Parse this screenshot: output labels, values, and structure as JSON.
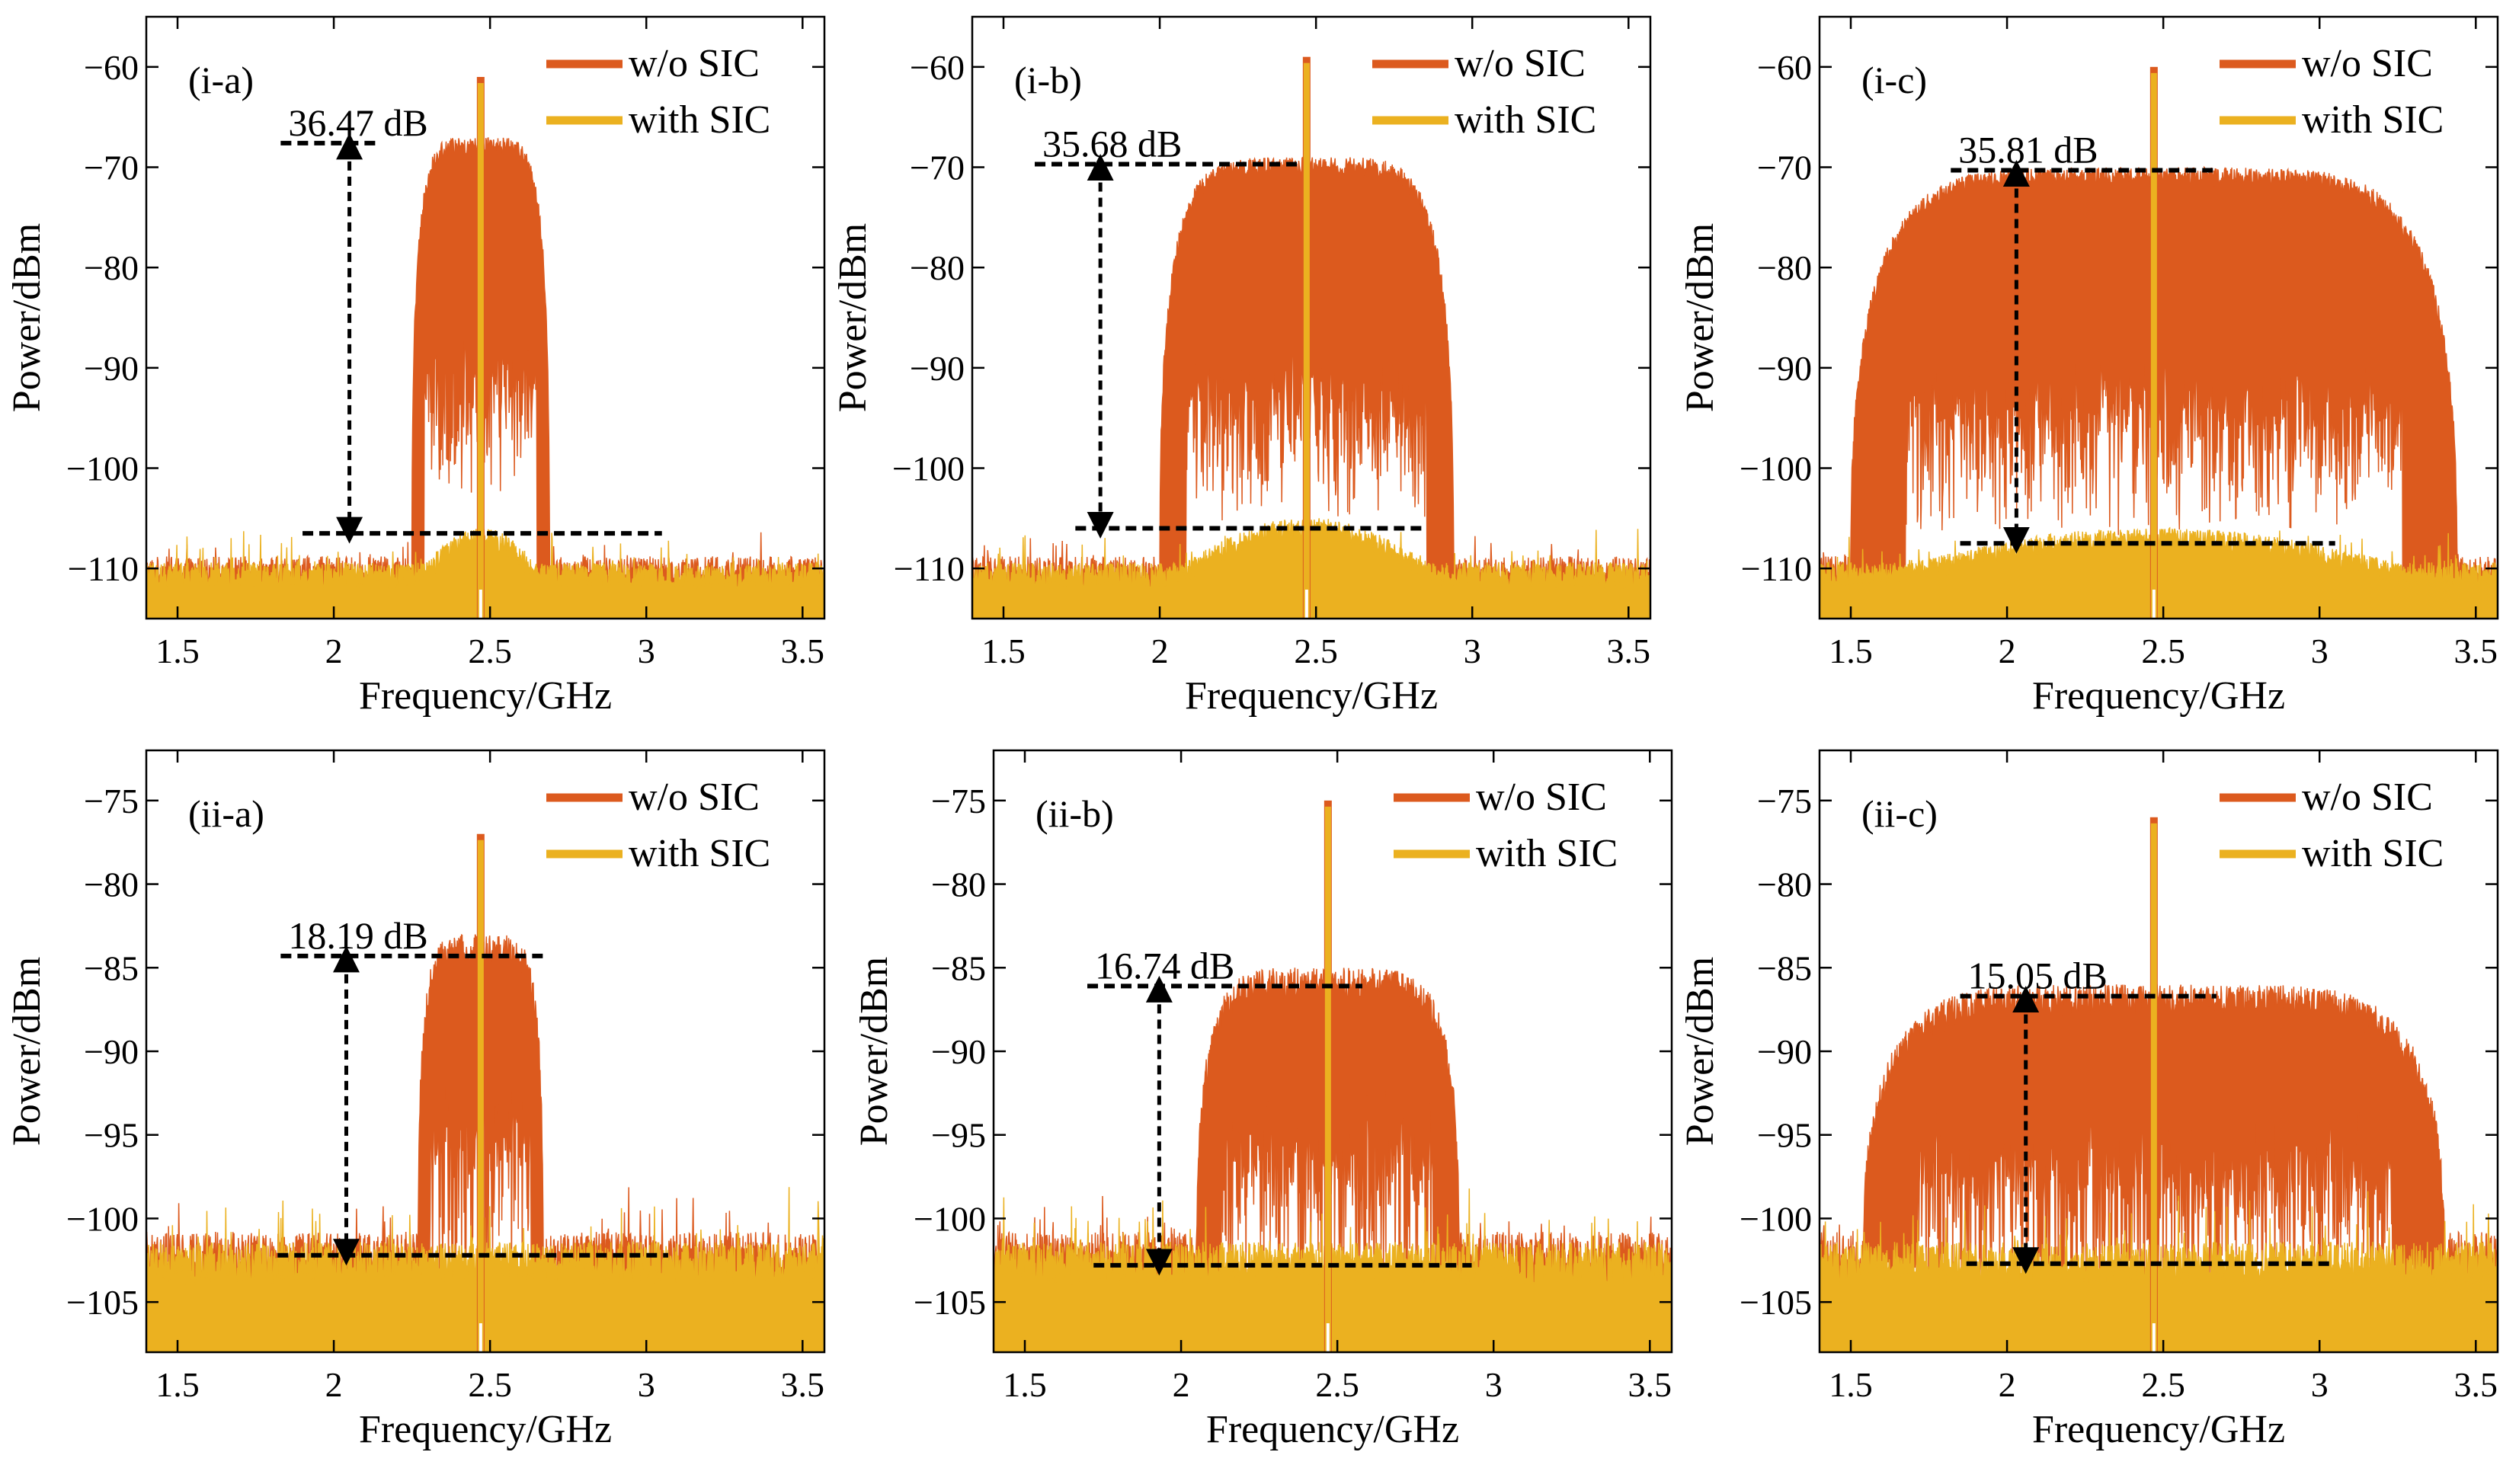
{
  "chart_data": [
    {
      "id": "i-a",
      "type": "line",
      "tag": "(i-a)",
      "xlabel": "Frequency/GHz",
      "ylabel": "Power/dBm",
      "xlim": [
        1.4,
        3.57
      ],
      "ylim": [
        -115,
        -55
      ],
      "xticks": [
        1.5,
        2,
        2.5,
        3,
        3.5
      ],
      "xtick_labels": [
        "1.5",
        "2",
        "2.5",
        "3",
        "3.5"
      ],
      "yticks": [
        -60,
        -70,
        -80,
        -90,
        -100,
        -110
      ],
      "ytick_labels": [
        "−60",
        "−70",
        "−80",
        "−90",
        "−100",
        "−110"
      ],
      "legend": [
        "w/o SIC",
        "with SIC"
      ],
      "series": [
        {
          "name": "w/o SIC",
          "color": "#DC5A1E",
          "center": 2.47,
          "halfwidth": 0.22,
          "peak_level": -68,
          "carrier": -61,
          "floor": -112,
          "notch_depth": -93
        },
        {
          "name": "with SIC",
          "color": "#EBB120",
          "center": 2.47,
          "halfwidth": 0.22,
          "hump_level": -107,
          "carrier": -61,
          "floor": -112
        }
      ],
      "annotation": {
        "text": "36.47 dB",
        "top_y": -67.6,
        "bottom_y": -106.5,
        "arrow_x": 2.05,
        "top_x_range": [
          1.83,
          2.15
        ],
        "bottom_x_range": [
          1.9,
          3.05
        ]
      }
    },
    {
      "id": "i-b",
      "type": "line",
      "tag": "(i-b)",
      "xlabel": "Frequency/GHz",
      "ylabel": "Power/dBm",
      "xlim": [
        1.4,
        3.57
      ],
      "ylim": [
        -115,
        -55
      ],
      "xticks": [
        1.5,
        2,
        2.5,
        3,
        3.5
      ],
      "xtick_labels": [
        "1.5",
        "2",
        "2.5",
        "3",
        "3.5"
      ],
      "yticks": [
        -60,
        -70,
        -80,
        -90,
        -100,
        -110
      ],
      "ytick_labels": [
        "−60",
        "−70",
        "−80",
        "−90",
        "−100",
        "−110"
      ],
      "legend": [
        "w/o SIC",
        "with SIC"
      ],
      "series": [
        {
          "name": "w/o SIC",
          "color": "#DC5A1E",
          "center": 2.47,
          "halfwidth": 0.47,
          "peak_level": -70,
          "carrier": -59,
          "floor": -112,
          "notch_depth": -95
        },
        {
          "name": "with SIC",
          "color": "#EBB120",
          "center": 2.47,
          "halfwidth": 0.47,
          "hump_level": -106,
          "carrier": -59,
          "floor": -112
        }
      ],
      "annotation": {
        "text": "35.68 dB",
        "top_y": -69.7,
        "bottom_y": -106,
        "arrow_x": 1.81,
        "top_x_range": [
          1.6,
          2.45
        ],
        "bottom_x_range": [
          1.73,
          2.85
        ]
      }
    },
    {
      "id": "i-c",
      "type": "line",
      "tag": "(i-c)",
      "xlabel": "Frequency/GHz",
      "ylabel": "Power/dBm",
      "xlim": [
        1.4,
        3.57
      ],
      "ylim": [
        -115,
        -55
      ],
      "xticks": [
        1.5,
        2,
        2.5,
        3,
        3.5
      ],
      "xtick_labels": [
        "1.5",
        "2",
        "2.5",
        "3",
        "3.5"
      ],
      "yticks": [
        -60,
        -70,
        -80,
        -90,
        -100,
        -110
      ],
      "ytick_labels": [
        "−60",
        "−70",
        "−80",
        "−90",
        "−100",
        "−110"
      ],
      "legend": [
        "w/o SIC",
        "with SIC"
      ],
      "series": [
        {
          "name": "w/o SIC",
          "color": "#DC5A1E",
          "center": 2.47,
          "halfwidth": 0.97,
          "peak_level": -71,
          "carrier": -60,
          "floor": -112,
          "notch_depth": -96
        },
        {
          "name": "with SIC",
          "color": "#EBB120",
          "center": 2.47,
          "halfwidth": 0.97,
          "hump_level": -107,
          "carrier": -60,
          "floor": -112
        }
      ],
      "annotation": {
        "text": "35.81 dB",
        "top_y": -70.3,
        "bottom_y": -107.5,
        "arrow_x": 2.03,
        "top_x_range": [
          1.82,
          2.67
        ],
        "bottom_x_range": [
          1.85,
          3.05
        ]
      }
    },
    {
      "id": "ii-a",
      "type": "line",
      "tag": "(ii-a)",
      "xlabel": "Frequency/GHz",
      "ylabel": "Power/dBm",
      "xlim": [
        1.4,
        3.57
      ],
      "ylim": [
        -108,
        -72
      ],
      "xticks": [
        1.5,
        2,
        2.5,
        3,
        3.5
      ],
      "xtick_labels": [
        "1.5",
        "2",
        "2.5",
        "3",
        "3.5"
      ],
      "yticks": [
        -75,
        -80,
        -85,
        -90,
        -95,
        -100,
        -105
      ],
      "ytick_labels": [
        "−75",
        "−80",
        "−85",
        "−90",
        "−95",
        "−100",
        "−105"
      ],
      "legend": [
        "w/o SIC",
        "with SIC"
      ],
      "series": [
        {
          "name": "w/o SIC",
          "color": "#DC5A1E",
          "center": 2.47,
          "halfwidth": 0.2,
          "peak_level": -84,
          "carrier": -77,
          "floor": -104,
          "notch_depth": -96
        },
        {
          "name": "with SIC",
          "color": "#EBB120",
          "center": 2.47,
          "halfwidth": 0.2,
          "hump_level": -103,
          "carrier": -77,
          "floor": -104
        }
      ],
      "annotation": {
        "text": "18.19 dB",
        "top_y": -84.3,
        "bottom_y": -102.2,
        "arrow_x": 2.04,
        "top_x_range": [
          1.83,
          2.67
        ],
        "bottom_x_range": [
          1.82,
          3.07
        ]
      }
    },
    {
      "id": "ii-b",
      "type": "line",
      "tag": "(ii-b)",
      "xlabel": "Frequency/GHz",
      "ylabel": "Power/dBm",
      "xlim": [
        1.4,
        3.57
      ],
      "ylim": [
        -108,
        -72
      ],
      "xticks": [
        1.5,
        2,
        2.5,
        3,
        3.5
      ],
      "xtick_labels": [
        "1.5",
        "2",
        "2.5",
        "3",
        "3.5"
      ],
      "yticks": [
        -75,
        -80,
        -85,
        -90,
        -95,
        -100,
        -105
      ],
      "ytick_labels": [
        "−75",
        "−80",
        "−85",
        "−90",
        "−95",
        "−100",
        "−105"
      ],
      "legend": [
        "w/o SIC",
        "with SIC"
      ],
      "series": [
        {
          "name": "w/o SIC",
          "color": "#DC5A1E",
          "center": 2.47,
          "halfwidth": 0.42,
          "peak_level": -86,
          "carrier": -75,
          "floor": -104,
          "notch_depth": -97
        },
        {
          "name": "with SIC",
          "color": "#EBB120",
          "center": 2.47,
          "halfwidth": 0.42,
          "hump_level": -103,
          "carrier": -75,
          "floor": -104
        }
      ],
      "annotation": {
        "text": "16.74 dB",
        "top_y": -86.1,
        "bottom_y": -102.8,
        "arrow_x": 1.93,
        "top_x_range": [
          1.7,
          2.58
        ],
        "bottom_x_range": [
          1.72,
          2.93
        ]
      }
    },
    {
      "id": "ii-c",
      "type": "line",
      "tag": "(ii-c)",
      "xlabel": "Frequency/GHz",
      "ylabel": "Power/dBm",
      "xlim": [
        1.4,
        3.57
      ],
      "ylim": [
        -108,
        -72
      ],
      "xticks": [
        1.5,
        2,
        2.5,
        3,
        3.5
      ],
      "xtick_labels": [
        "1.5",
        "2",
        "2.5",
        "3",
        "3.5"
      ],
      "yticks": [
        -75,
        -80,
        -85,
        -90,
        -95,
        -100,
        -105
      ],
      "ytick_labels": [
        "−75",
        "−80",
        "−85",
        "−90",
        "−95",
        "−100",
        "−105"
      ],
      "legend": [
        "w/o SIC",
        "with SIC"
      ],
      "series": [
        {
          "name": "w/o SIC",
          "color": "#DC5A1E",
          "center": 2.47,
          "halfwidth": 0.93,
          "peak_level": -87,
          "carrier": -76,
          "floor": -104,
          "notch_depth": -98
        },
        {
          "name": "with SIC",
          "color": "#EBB120",
          "center": 2.47,
          "halfwidth": 0.93,
          "hump_level": -104,
          "carrier": -76,
          "floor": -104
        }
      ],
      "annotation": {
        "text": "15.05 dB",
        "top_y": -86.7,
        "bottom_y": -102.7,
        "arrow_x": 2.06,
        "top_x_range": [
          1.85,
          2.67
        ],
        "bottom_x_range": [
          1.87,
          3.05
        ]
      }
    }
  ]
}
